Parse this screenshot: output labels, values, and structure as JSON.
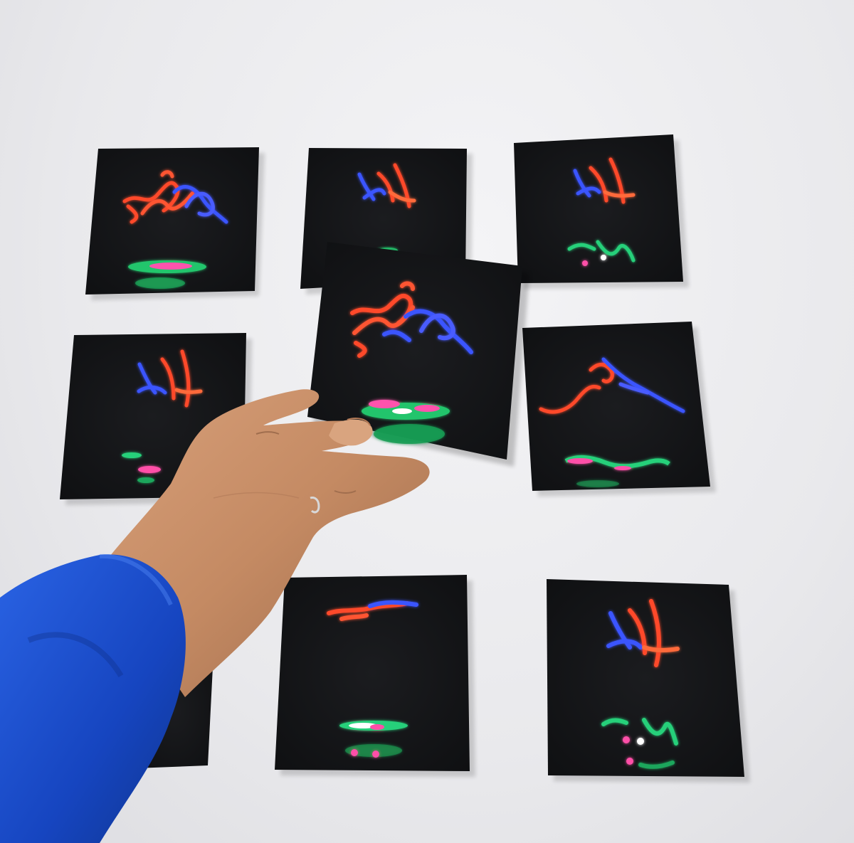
{
  "scene": {
    "background": "#ebebee",
    "description_colors": {
      "print_black": "#141517",
      "trail_red": "#ff4a2a",
      "trail_blue": "#3a54ff",
      "trail_green": "#27d07a",
      "trail_pink": "#ff4fa8",
      "sleeve_blue": "#1a4fd0",
      "skin": "#c9906a"
    }
  },
  "prints": [
    {
      "id": "print-top-left",
      "motif": "red-blue-scribble-large"
    },
    {
      "id": "print-top-center",
      "motif": "blue-red-letters"
    },
    {
      "id": "print-top-right",
      "motif": "blue-red-letters-small"
    },
    {
      "id": "print-middle-left",
      "motif": "blue-red-letters"
    },
    {
      "id": "print-held",
      "motif": "red-blue-scribble-large"
    },
    {
      "id": "print-middle-right",
      "motif": "red-blue-wave"
    },
    {
      "id": "print-bottom-left",
      "motif": "hidden-under-arm"
    },
    {
      "id": "print-bottom-center",
      "motif": "red-blue-smear"
    },
    {
      "id": "print-bottom-right",
      "motif": "blue-red-letters"
    }
  ]
}
